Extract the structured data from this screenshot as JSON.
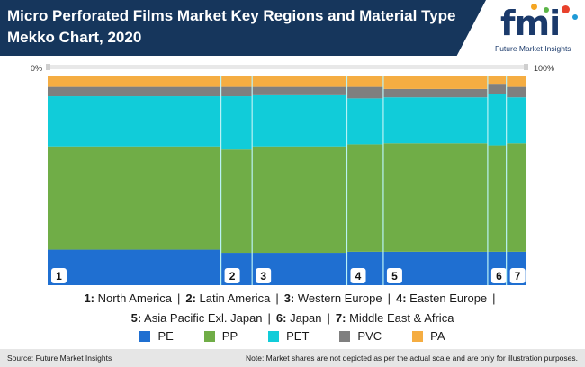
{
  "header": {
    "title_line1": "Micro Perforated Films Market Key Regions and Material Type",
    "title_line2": "Mekko Chart, 2020"
  },
  "logo": {
    "mark": "fmi",
    "tagline": "Future Market Insights"
  },
  "axis": {
    "left_label": "0%",
    "right_label": "100%"
  },
  "chart_data": {
    "type": "mekko",
    "title": "Micro Perforated Films Market Key Regions and Material Type Mekko Chart, 2020",
    "x_axis": {
      "min_label": "0%",
      "max_label": "100%"
    },
    "categories": [
      "1",
      "2",
      "3",
      "4",
      "5",
      "6",
      "7"
    ],
    "category_names": [
      "North America",
      "Latin America",
      "Western Europe",
      "Easten Europe",
      "Asia Pacific Exl. Japan",
      "Japan",
      "Middle East & Africa"
    ],
    "widths_pct": [
      36.2,
      6.5,
      19.8,
      7.6,
      21.8,
      3.9,
      4.2
    ],
    "series": [
      {
        "name": "PE",
        "color": "#1f6fd1",
        "values": [
          17.0,
          15.5,
          15.5,
          16.0,
          16.0,
          16.0,
          16.0
        ]
      },
      {
        "name": "PP",
        "color": "#70ad47",
        "values": [
          49.5,
          49.5,
          51.0,
          51.5,
          52.0,
          51.0,
          52.0
        ]
      },
      {
        "name": "PET",
        "color": "#11ccd9",
        "values": [
          24.0,
          25.5,
          24.5,
          22.0,
          22.0,
          24.5,
          22.0
        ]
      },
      {
        "name": "PVC",
        "color": "#7f7f7f",
        "values": [
          4.5,
          4.5,
          4.0,
          5.5,
          4.0,
          5.0,
          5.0
        ]
      },
      {
        "name": "PA",
        "color": "#f5ad42",
        "values": [
          5.0,
          5.0,
          5.0,
          5.0,
          6.0,
          3.5,
          5.0
        ]
      }
    ]
  },
  "legend_regions": {
    "row1": [
      {
        "num": "1:",
        "name": "North America"
      },
      {
        "num": "2:",
        "name": "Latin America"
      },
      {
        "num": "3:",
        "name": "Western Europe"
      },
      {
        "num": "4:",
        "name": "Easten Europe"
      }
    ],
    "row2": [
      {
        "num": "5:",
        "name": "Asia Pacific Exl. Japan"
      },
      {
        "num": "6:",
        "name": "Japan"
      },
      {
        "num": "7:",
        "name": "Middle East & Africa"
      }
    ],
    "separator": "|"
  },
  "footer": {
    "source": "Source: Future Market Insights",
    "note": "Note: Market shares are not depicted as per the actual scale and are only for illustration purposes."
  }
}
